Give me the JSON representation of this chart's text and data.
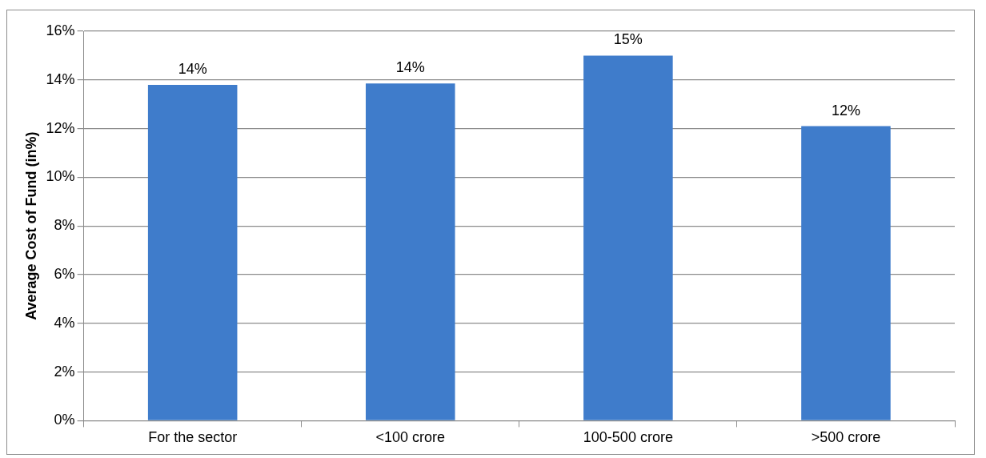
{
  "chart_data": {
    "type": "bar",
    "ylabel": "Average Cost of Fund (in%)",
    "categories": [
      "For the sector",
      "<100 crore",
      "100-500 crore",
      ">500 crore"
    ],
    "values": [
      13.8,
      13.85,
      15,
      12.1
    ],
    "value_labels": [
      "14%",
      "14%",
      "15%",
      "12%"
    ],
    "color": "#3f7ccb",
    "ylim": [
      0,
      16
    ],
    "yticks": [
      {
        "value": 0,
        "label": "0%"
      },
      {
        "value": 2,
        "label": "2%"
      },
      {
        "value": 4,
        "label": "4%"
      },
      {
        "value": 6,
        "label": "6%"
      },
      {
        "value": 8,
        "label": "8%"
      },
      {
        "value": 10,
        "label": "10%"
      },
      {
        "value": 12,
        "label": "12%"
      },
      {
        "value": 14,
        "label": "14%"
      },
      {
        "value": 16,
        "label": "16%"
      }
    ],
    "grid": "y",
    "legend": false
  }
}
